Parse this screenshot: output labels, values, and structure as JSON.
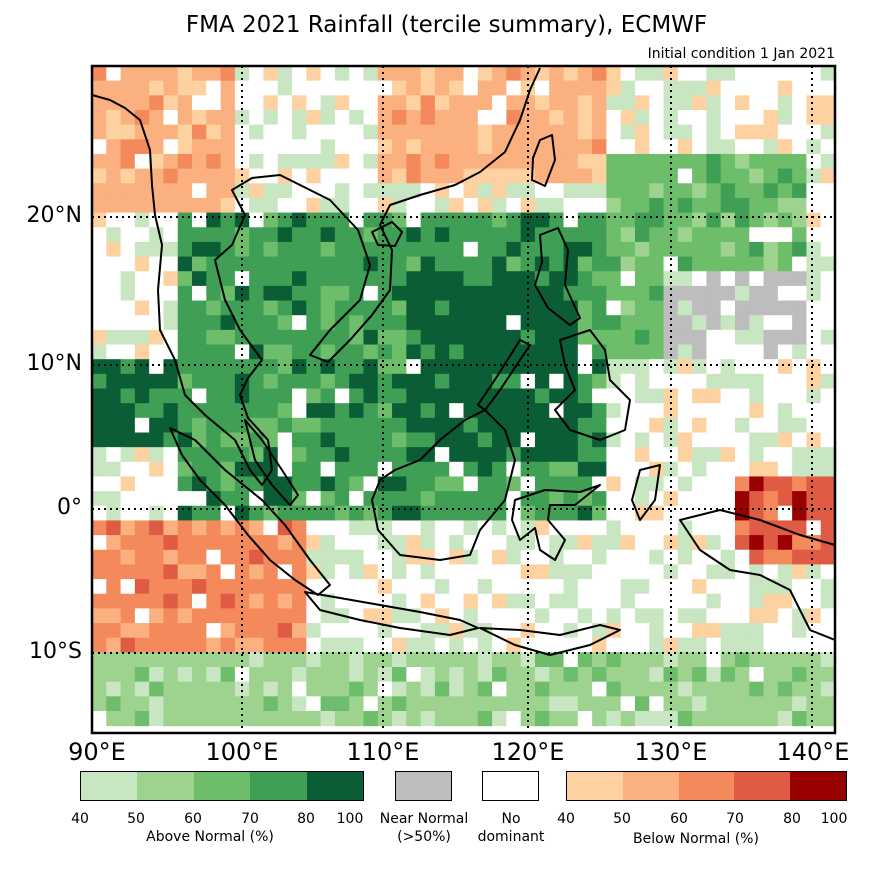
{
  "title": "FMA 2021 Rainfall (tercile summary), ECMWF",
  "subtitle": "Initial condition 1 Jan 2021",
  "lat_labels": [
    "20°N",
    "10°N",
    "0°",
    "10°S"
  ],
  "lon_labels": [
    "90°E",
    "100°E",
    "110°E",
    "120°E",
    "130°E",
    "140°E"
  ],
  "colors": {
    "above": [
      "#c8e6c1",
      "#9ed38f",
      "#6dbd6a",
      "#3f9f55",
      "#0b5d35"
    ],
    "near": "#bdbdbd",
    "below": [
      "#fdd1a0",
      "#fbb07f",
      "#f48a5c",
      "#e05b43",
      "#990000"
    ],
    "none": "#ffffff"
  },
  "legend": {
    "above_ticks": [
      "40",
      "50",
      "60",
      "70",
      "80",
      "100"
    ],
    "above_label": "Above Normal (%)",
    "near_label_1": "Near Normal",
    "near_label_2": "(>50%)",
    "none_label_1": "No",
    "none_label_2": "dominant",
    "below_ticks": [
      "40",
      "50",
      "60",
      "70",
      "80",
      "100"
    ],
    "below_label": "Below Normal (%)"
  },
  "chart_data": {
    "type": "heatmap",
    "title": "FMA 2021 Rainfall (tercile summary), ECMWF",
    "lon_range_deg": [
      90,
      142
    ],
    "lat_range_deg": [
      -15.5,
      30
    ],
    "categories_above_normal_pct": [
      "40-50",
      "50-60",
      "60-70",
      "70-80",
      "80-100"
    ],
    "categories_below_normal_pct": [
      "40-50",
      "50-60",
      "60-70",
      "70-80",
      "80-100"
    ],
    "regions": [
      {
        "lon": [
          90,
          100
        ],
        "lat": [
          20,
          30
        ],
        "class": "below",
        "level": 1
      },
      {
        "lon": [
          110,
          126
        ],
        "lat": [
          22,
          30
        ],
        "class": "below",
        "level": 1
      },
      {
        "lon": [
          96,
          126
        ],
        "lat": [
          -1,
          20
        ],
        "class": "above",
        "level": 3
      },
      {
        "lon": [
          112,
          124
        ],
        "lat": [
          3,
          16
        ],
        "class": "above",
        "level": 4
      },
      {
        "lon": [
          90,
          96
        ],
        "lat": [
          4,
          10
        ],
        "class": "above",
        "level": 4
      },
      {
        "lon": [
          126,
          140
        ],
        "lat": [
          10,
          24
        ],
        "class": "above",
        "level": 2
      },
      {
        "lon": [
          130,
          140
        ],
        "lat": [
          10,
          16
        ],
        "class": "near",
        "level": 0
      },
      {
        "lon": [
          90,
          105
        ],
        "lat": [
          -10,
          -1
        ],
        "class": "below",
        "level": 2
      },
      {
        "lon": [
          135,
          142
        ],
        "lat": [
          -4,
          2
        ],
        "class": "below",
        "level": 3
      },
      {
        "lon": [
          90,
          142
        ],
        "lat": [
          -15.5,
          -10
        ],
        "class": "above",
        "level": 1
      }
    ]
  }
}
